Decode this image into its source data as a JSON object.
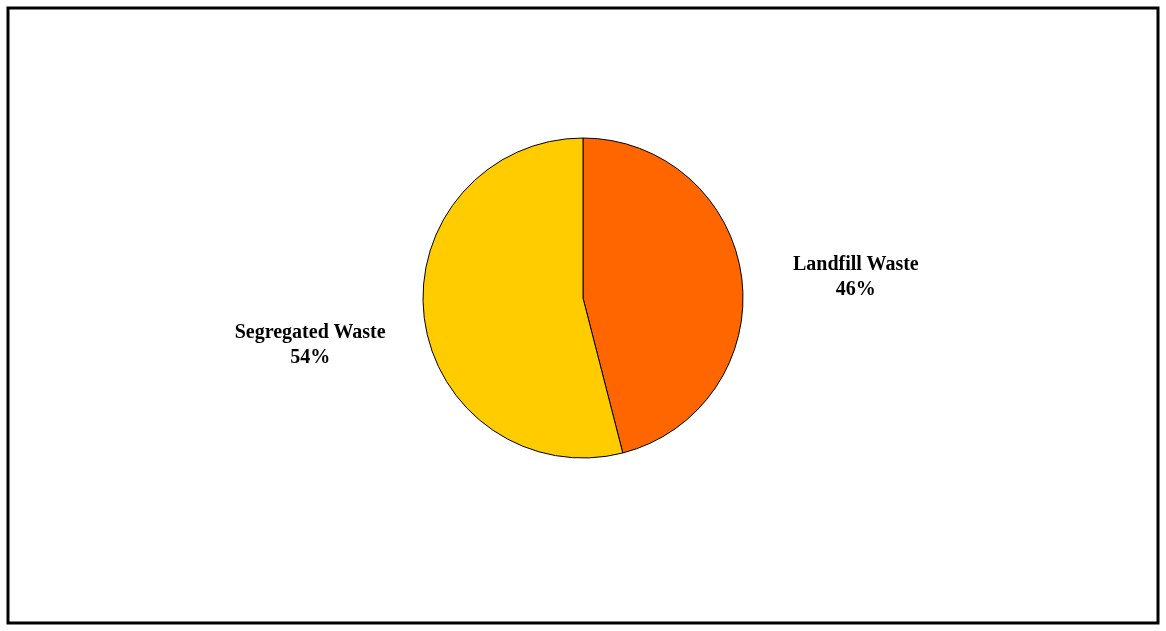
{
  "chart_data": {
    "type": "pie",
    "categories": [
      "Landfill Waste",
      "Segregated Waste"
    ],
    "values": [
      46,
      54
    ],
    "colors": [
      "#ff6600",
      "#ffcc00"
    ],
    "value_labels": [
      "46%",
      "54%"
    ]
  }
}
